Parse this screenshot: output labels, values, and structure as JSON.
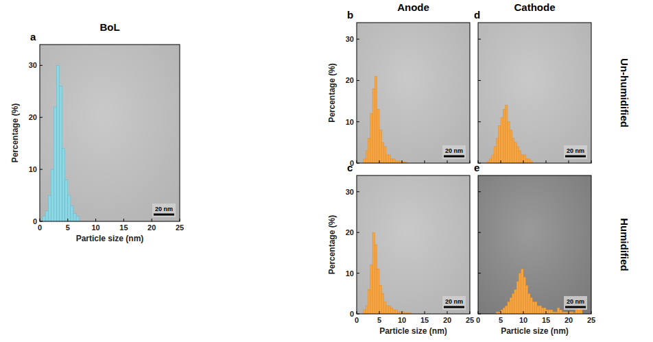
{
  "figure_labels": {
    "columns": [
      "Anode",
      "Cathode"
    ],
    "rows": [
      "Un-humidified",
      "Humidified"
    ]
  },
  "chart_data": [
    {
      "type": "histogram",
      "label": "a",
      "title": "BoL",
      "x_label": "Particle size (nm)",
      "y_label": "Percentage (%)",
      "color": "#8fd6e3",
      "xlim": [
        0,
        25
      ],
      "ylim": [
        0,
        34
      ],
      "xticks": [
        0,
        5,
        10,
        15,
        20,
        25
      ],
      "yticks": [
        0,
        10,
        20,
        30
      ],
      "tick_labels": true,
      "annotations": [
        "20 nm"
      ],
      "bins": [
        0.5,
        1,
        1.5,
        2,
        2.5,
        3,
        3.5,
        4,
        4.5,
        5,
        5.5,
        6,
        6.5,
        7
      ],
      "counts": [
        1,
        2,
        5,
        10,
        22,
        30,
        26,
        14,
        8,
        5,
        3,
        1.5,
        1
      ]
    },
    {
      "type": "histogram",
      "label": "b",
      "y_label": "Percentage (%)",
      "color": "#f5a544",
      "xlim": [
        0,
        25
      ],
      "ylim": [
        0,
        34
      ],
      "xticks": [
        0,
        5,
        10,
        15,
        20,
        25
      ],
      "yticks": [
        0,
        10,
        20,
        30
      ],
      "tick_labels": "y",
      "annotations": [
        "20 nm"
      ],
      "bins": [
        1.5,
        2,
        2.5,
        3,
        3.5,
        4,
        4.5,
        5,
        5.5,
        6,
        6.5,
        7,
        7.5,
        8,
        8.5,
        9,
        9.5,
        10,
        10.5,
        11
      ],
      "counts": [
        1,
        3,
        6,
        12,
        18,
        21,
        13,
        8,
        5,
        4,
        2,
        2,
        1,
        1,
        0.5,
        0.5,
        0.5,
        0.3,
        0.3
      ]
    },
    {
      "type": "histogram",
      "label": "c",
      "x_label": "Particle size (nm)",
      "y_label": "Percentage (%)",
      "color": "#f5a544",
      "xlim": [
        0,
        25
      ],
      "ylim": [
        0,
        34
      ],
      "xticks": [
        0,
        5,
        10,
        15,
        20,
        25
      ],
      "yticks": [
        0,
        10,
        20,
        30
      ],
      "tick_labels": true,
      "annotations": [
        "20 nm"
      ],
      "bins": [
        1.5,
        2,
        2.5,
        3,
        3.5,
        4,
        4.5,
        5,
        5.5,
        6,
        6.5,
        7,
        7.5,
        8,
        8.5,
        9,
        9.5,
        10,
        10.5,
        11,
        11.5,
        12
      ],
      "counts": [
        1,
        2,
        6,
        12,
        20,
        17,
        11,
        7,
        5,
        3,
        2,
        2,
        1.5,
        1,
        1,
        0.5,
        0.5,
        0.5,
        0.3,
        0.3,
        0.3
      ]
    },
    {
      "type": "histogram",
      "label": "d",
      "color": "#f5a544",
      "xlim": [
        0,
        25
      ],
      "ylim": [
        0,
        34
      ],
      "xticks": [
        0,
        5,
        10,
        15,
        20,
        25
      ],
      "yticks": [
        0,
        10,
        20,
        30
      ],
      "tick_labels": false,
      "annotations": [
        "20 nm"
      ],
      "bins": [
        2,
        2.5,
        3,
        3.5,
        4,
        4.5,
        5,
        5.5,
        6,
        6.5,
        7,
        7.5,
        8,
        8.5,
        9,
        9.5,
        10,
        10.5,
        11,
        11.5,
        12
      ],
      "counts": [
        0.5,
        1,
        2,
        4,
        6,
        9,
        11,
        13,
        14,
        10,
        8,
        6,
        5,
        4,
        3,
        2,
        2,
        1,
        1,
        0.5
      ]
    },
    {
      "type": "histogram",
      "label": "e",
      "x_label": "Particle size (nm)",
      "color": "#f5a544",
      "xlim": [
        0,
        25
      ],
      "ylim": [
        0,
        34
      ],
      "xticks": [
        0,
        5,
        10,
        15,
        20,
        25
      ],
      "yticks": [
        0,
        10,
        20,
        30
      ],
      "tick_labels": "x",
      "annotations": [
        "20 nm"
      ],
      "bins": [
        4,
        4.5,
        5,
        5.5,
        6,
        6.5,
        7,
        7.5,
        8,
        8.5,
        9,
        9.5,
        10,
        10.5,
        11,
        11.5,
        12,
        12.5,
        13,
        13.5,
        14,
        14.5,
        15,
        15.5,
        16,
        16.5,
        17,
        17.5,
        18,
        18.5,
        19,
        19.5,
        20,
        20.5,
        21,
        21.5,
        22,
        22.5,
        23
      ],
      "counts": [
        0.5,
        0.5,
        1,
        1.5,
        2,
        3,
        4,
        5,
        6,
        8,
        10,
        11,
        9,
        7,
        5,
        4,
        3,
        3,
        2,
        2,
        1.5,
        1.5,
        1,
        1,
        1,
        0.5,
        0.5,
        1.5,
        1,
        0.5,
        0.5,
        0.5,
        0.5,
        0.5,
        0.3,
        1,
        2,
        1
      ]
    }
  ]
}
